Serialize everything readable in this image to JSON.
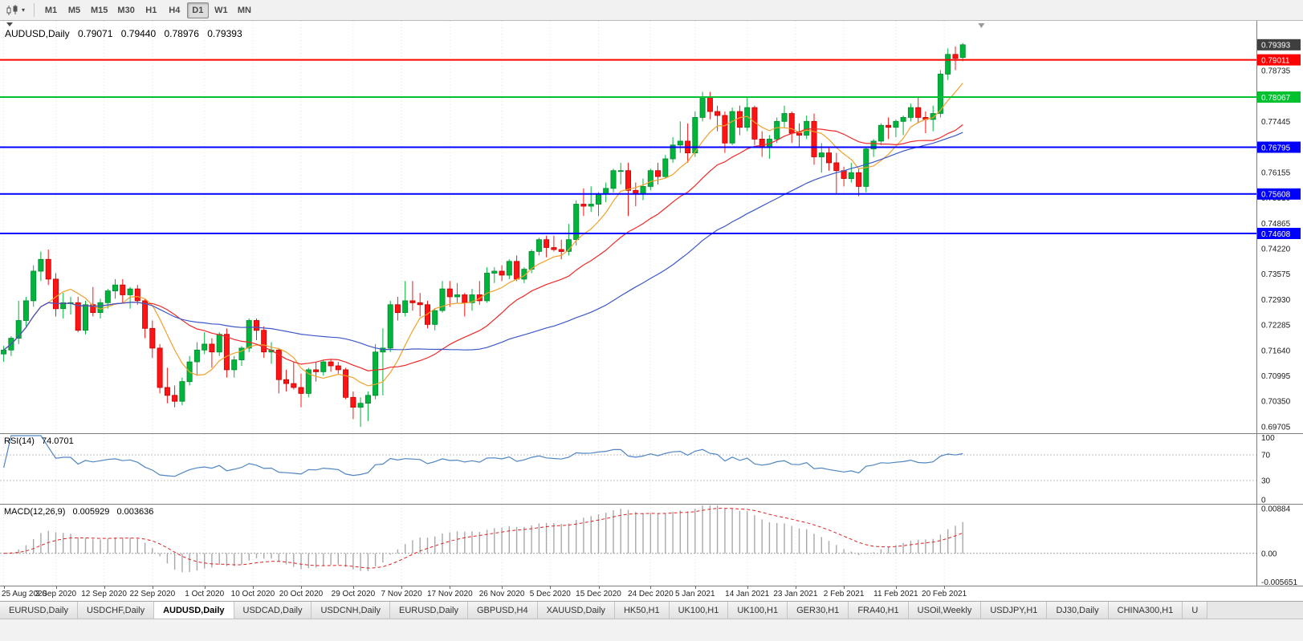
{
  "toolbar": {
    "timeframes": [
      "M1",
      "M5",
      "M15",
      "M30",
      "H1",
      "H4",
      "D1",
      "W1",
      "MN"
    ],
    "selected": "D1"
  },
  "header": {
    "symbol": "AUDUSD,Daily",
    "open": "0.79071",
    "high": "0.79440",
    "low": "0.78976",
    "close": "0.79393"
  },
  "rsi_panel": {
    "label": "RSI(14)",
    "value": "74.0701"
  },
  "macd_panel": {
    "label": "MACD(12,26,9)",
    "value_main": "0.005929",
    "value_signal": "0.003636"
  },
  "chart_data": {
    "type": "candlestick",
    "symbol": "AUDUSD",
    "timeframe": "Daily",
    "ohlc_current": {
      "open": 0.79071,
      "high": 0.7944,
      "low": 0.78976,
      "close": 0.79393
    },
    "visible_slots": 169,
    "shift_marker_slot": 131.5,
    "up_color": "#00b43c",
    "up_border": "#008a2e",
    "down_color": "#fe1414",
    "down_border": "#c40000",
    "price_axis": {
      "min": 0.6954,
      "max": 0.8,
      "labels": [
        "0.78735",
        "0.78090",
        "0.77445",
        "0.76800",
        "0.76155",
        "0.75510",
        "0.74865",
        "0.74220",
        "0.73575",
        "0.72930",
        "0.72285",
        "0.71640",
        "0.70995",
        "0.70350",
        "0.69705"
      ]
    },
    "current_price": {
      "value": 0.79393,
      "label": "0.79393",
      "tag_color": "#3f3f3f"
    },
    "horizontal_lines": [
      {
        "value": 0.79011,
        "label": "0.79011",
        "color": "#ff0000"
      },
      {
        "value": 0.78067,
        "label": "0.78067",
        "color": "#00c22e"
      },
      {
        "value": 0.76795,
        "label": "0.76795",
        "color": "#0000ff"
      },
      {
        "value": 0.75608,
        "label": "0.75608",
        "color": "#0000ff"
      },
      {
        "value": 0.74608,
        "label": "0.74608",
        "color": "#0000ff"
      }
    ],
    "moving_averages": [
      {
        "period": 7,
        "type": "sma",
        "color": "#f0a22d"
      },
      {
        "period": 20,
        "type": "sma",
        "color": "#ef2929"
      },
      {
        "period": 45,
        "type": "sma",
        "color": "#3c58c8"
      }
    ],
    "x_ticks": [
      {
        "i": 0,
        "label": "25 Aug 2020"
      },
      {
        "i": 7,
        "label": "3 Sep 2020"
      },
      {
        "i": 13.5,
        "label": "12 Sep 2020"
      },
      {
        "i": 20,
        "label": "22 Sep 2020"
      },
      {
        "i": 27,
        "label": "1 Oct 2020"
      },
      {
        "i": 33.5,
        "label": "10 Oct 2020"
      },
      {
        "i": 40,
        "label": "20 Oct 2020"
      },
      {
        "i": 47,
        "label": "29 Oct 2020"
      },
      {
        "i": 53.5,
        "label": "7 Nov 2020"
      },
      {
        "i": 60,
        "label": "17 Nov 2020"
      },
      {
        "i": 67,
        "label": "26 Nov 2020"
      },
      {
        "i": 73.5,
        "label": "5 Dec 2020"
      },
      {
        "i": 80,
        "label": "15 Dec 2020"
      },
      {
        "i": 87,
        "label": "24 Dec 2020"
      },
      {
        "i": 93,
        "label": "5 Jan 2021"
      },
      {
        "i": 100,
        "label": "14 Jan 2021"
      },
      {
        "i": 106.5,
        "label": "23 Jan 2021"
      },
      {
        "i": 113,
        "label": "2 Feb 2021"
      },
      {
        "i": 120,
        "label": "11 Feb 2021"
      },
      {
        "i": 126.5,
        "label": "20 Feb 2021"
      }
    ],
    "dates": [
      "2020-08-25",
      "2020-08-26",
      "2020-08-27",
      "2020-08-28",
      "2020-08-31",
      "2020-09-01",
      "2020-09-02",
      "2020-09-03",
      "2020-09-04",
      "2020-09-07",
      "2020-09-08",
      "2020-09-09",
      "2020-09-10",
      "2020-09-11",
      "2020-09-14",
      "2020-09-15",
      "2020-09-16",
      "2020-09-17",
      "2020-09-18",
      "2020-09-21",
      "2020-09-22",
      "2020-09-23",
      "2020-09-24",
      "2020-09-25",
      "2020-09-28",
      "2020-09-29",
      "2020-09-30",
      "2020-10-01",
      "2020-10-02",
      "2020-10-05",
      "2020-10-06",
      "2020-10-07",
      "2020-10-08",
      "2020-10-09",
      "2020-10-12",
      "2020-10-13",
      "2020-10-14",
      "2020-10-15",
      "2020-10-16",
      "2020-10-19",
      "2020-10-20",
      "2020-10-21",
      "2020-10-22",
      "2020-10-23",
      "2020-10-26",
      "2020-10-27",
      "2020-10-28",
      "2020-10-29",
      "2020-10-30",
      "2020-11-02",
      "2020-11-03",
      "2020-11-04",
      "2020-11-05",
      "2020-11-06",
      "2020-11-09",
      "2020-11-10",
      "2020-11-11",
      "2020-11-12",
      "2020-11-13",
      "2020-11-16",
      "2020-11-17",
      "2020-11-18",
      "2020-11-19",
      "2020-11-20",
      "2020-11-23",
      "2020-11-24",
      "2020-11-25",
      "2020-11-26",
      "2020-11-27",
      "2020-11-30",
      "2020-12-01",
      "2020-12-02",
      "2020-12-03",
      "2020-12-04",
      "2020-12-07",
      "2020-12-08",
      "2020-12-09",
      "2020-12-10",
      "2020-12-11",
      "2020-12-14",
      "2020-12-15",
      "2020-12-16",
      "2020-12-17",
      "2020-12-18",
      "2020-12-21",
      "2020-12-22",
      "2020-12-23",
      "2020-12-24",
      "2020-12-28",
      "2020-12-29",
      "2020-12-30",
      "2020-12-31",
      "2021-01-04",
      "2021-01-05",
      "2021-01-06",
      "2021-01-07",
      "2021-01-08",
      "2021-01-11",
      "2021-01-12",
      "2021-01-13",
      "2021-01-14",
      "2021-01-15",
      "2021-01-18",
      "2021-01-19",
      "2021-01-20",
      "2021-01-21",
      "2021-01-22",
      "2021-01-25",
      "2021-01-26",
      "2021-01-27",
      "2021-01-28",
      "2021-01-29",
      "2021-02-01",
      "2021-02-02",
      "2021-02-03",
      "2021-02-04",
      "2021-02-05",
      "2021-02-08",
      "2021-02-09",
      "2021-02-10",
      "2021-02-11",
      "2021-02-12",
      "2021-02-15",
      "2021-02-16",
      "2021-02-17",
      "2021-02-18",
      "2021-02-19",
      "2021-02-22",
      "2021-02-23",
      "2021-02-24"
    ],
    "candles_ohlc": [
      [
        0.7155,
        0.7175,
        0.7135,
        0.7165
      ],
      [
        0.7165,
        0.72,
        0.715,
        0.7195
      ],
      [
        0.7195,
        0.729,
        0.718,
        0.724
      ],
      [
        0.724,
        0.73,
        0.7225,
        0.729
      ],
      [
        0.729,
        0.738,
        0.7275,
        0.7365
      ],
      [
        0.7365,
        0.7415,
        0.734,
        0.7395
      ],
      [
        0.7395,
        0.742,
        0.733,
        0.7345
      ],
      [
        0.7345,
        0.736,
        0.725,
        0.727
      ],
      [
        0.727,
        0.731,
        0.7245,
        0.7285
      ],
      [
        0.7285,
        0.73,
        0.7255,
        0.7285
      ],
      [
        0.7285,
        0.73,
        0.721,
        0.7215
      ],
      [
        0.7215,
        0.729,
        0.7205,
        0.728
      ],
      [
        0.728,
        0.7325,
        0.725,
        0.726
      ],
      [
        0.726,
        0.7295,
        0.7245,
        0.7285
      ],
      [
        0.7285,
        0.732,
        0.727,
        0.7315
      ],
      [
        0.7315,
        0.7345,
        0.7295,
        0.733
      ],
      [
        0.733,
        0.7345,
        0.7285,
        0.7305
      ],
      [
        0.7305,
        0.7325,
        0.727,
        0.732
      ],
      [
        0.732,
        0.733,
        0.728,
        0.729
      ],
      [
        0.729,
        0.7295,
        0.7195,
        0.722
      ],
      [
        0.722,
        0.724,
        0.7145,
        0.717
      ],
      [
        0.717,
        0.718,
        0.7055,
        0.707
      ],
      [
        0.707,
        0.712,
        0.703,
        0.705
      ],
      [
        0.705,
        0.7075,
        0.702,
        0.7035
      ],
      [
        0.7035,
        0.7095,
        0.7025,
        0.7085
      ],
      [
        0.7085,
        0.715,
        0.7075,
        0.7135
      ],
      [
        0.7135,
        0.7185,
        0.71,
        0.7165
      ],
      [
        0.7165,
        0.721,
        0.7155,
        0.718
      ],
      [
        0.718,
        0.7195,
        0.712,
        0.716
      ],
      [
        0.716,
        0.721,
        0.715,
        0.7205
      ],
      [
        0.7205,
        0.722,
        0.7095,
        0.7115
      ],
      [
        0.7115,
        0.715,
        0.7095,
        0.714
      ],
      [
        0.714,
        0.7175,
        0.7125,
        0.717
      ],
      [
        0.717,
        0.7245,
        0.716,
        0.724
      ],
      [
        0.724,
        0.7245,
        0.719,
        0.7215
      ],
      [
        0.7215,
        0.7225,
        0.7145,
        0.716
      ],
      [
        0.716,
        0.7185,
        0.713,
        0.7165
      ],
      [
        0.7165,
        0.717,
        0.7055,
        0.709
      ],
      [
        0.709,
        0.7115,
        0.706,
        0.708
      ],
      [
        0.708,
        0.7135,
        0.7065,
        0.707
      ],
      [
        0.707,
        0.7105,
        0.702,
        0.7055
      ],
      [
        0.7055,
        0.712,
        0.7045,
        0.7115
      ],
      [
        0.7115,
        0.7135,
        0.7085,
        0.711
      ],
      [
        0.711,
        0.714,
        0.71,
        0.7135
      ],
      [
        0.7135,
        0.714,
        0.711,
        0.7125
      ],
      [
        0.7125,
        0.7135,
        0.7105,
        0.7115
      ],
      [
        0.7115,
        0.712,
        0.704,
        0.7045
      ],
      [
        0.7045,
        0.706,
        0.699,
        0.702
      ],
      [
        0.702,
        0.7045,
        0.697,
        0.703
      ],
      [
        0.703,
        0.706,
        0.6985,
        0.705
      ],
      [
        0.705,
        0.718,
        0.704,
        0.716
      ],
      [
        0.716,
        0.722,
        0.705,
        0.717
      ],
      [
        0.717,
        0.729,
        0.716,
        0.728
      ],
      [
        0.728,
        0.73,
        0.724,
        0.726
      ],
      [
        0.726,
        0.734,
        0.725,
        0.729
      ],
      [
        0.729,
        0.734,
        0.7265,
        0.7285
      ],
      [
        0.7285,
        0.731,
        0.725,
        0.728
      ],
      [
        0.728,
        0.729,
        0.722,
        0.723
      ],
      [
        0.723,
        0.727,
        0.7215,
        0.7265
      ],
      [
        0.7265,
        0.734,
        0.726,
        0.732
      ],
      [
        0.732,
        0.734,
        0.7275,
        0.73
      ],
      [
        0.73,
        0.7335,
        0.7285,
        0.7305
      ],
      [
        0.7305,
        0.731,
        0.725,
        0.7285
      ],
      [
        0.7285,
        0.732,
        0.7265,
        0.7305
      ],
      [
        0.7305,
        0.734,
        0.728,
        0.729
      ],
      [
        0.729,
        0.7375,
        0.7285,
        0.736
      ],
      [
        0.736,
        0.7375,
        0.7335,
        0.7365
      ],
      [
        0.7365,
        0.738,
        0.734,
        0.7355
      ],
      [
        0.7355,
        0.7395,
        0.7345,
        0.739
      ],
      [
        0.739,
        0.7405,
        0.734,
        0.7345
      ],
      [
        0.7345,
        0.7375,
        0.7335,
        0.737
      ],
      [
        0.737,
        0.742,
        0.736,
        0.7415
      ],
      [
        0.7415,
        0.745,
        0.7405,
        0.7445
      ],
      [
        0.7445,
        0.7455,
        0.74,
        0.7425
      ],
      [
        0.7425,
        0.7455,
        0.7415,
        0.742
      ],
      [
        0.742,
        0.7445,
        0.7395,
        0.7415
      ],
      [
        0.7415,
        0.7485,
        0.7405,
        0.7445
      ],
      [
        0.7445,
        0.7545,
        0.743,
        0.7535
      ],
      [
        0.7535,
        0.7575,
        0.7505,
        0.753
      ],
      [
        0.753,
        0.758,
        0.7515,
        0.7535
      ],
      [
        0.7535,
        0.7565,
        0.7505,
        0.756
      ],
      [
        0.756,
        0.759,
        0.754,
        0.7575
      ],
      [
        0.7575,
        0.7625,
        0.7565,
        0.762
      ],
      [
        0.762,
        0.764,
        0.7585,
        0.762
      ],
      [
        0.762,
        0.764,
        0.7505,
        0.757
      ],
      [
        0.757,
        0.759,
        0.753,
        0.756
      ],
      [
        0.756,
        0.76,
        0.7545,
        0.758
      ],
      [
        0.758,
        0.7625,
        0.757,
        0.762
      ],
      [
        0.762,
        0.764,
        0.7585,
        0.7605
      ],
      [
        0.7605,
        0.766,
        0.76,
        0.765
      ],
      [
        0.765,
        0.7705,
        0.764,
        0.7685
      ],
      [
        0.7685,
        0.7745,
        0.7665,
        0.7695
      ],
      [
        0.7695,
        0.774,
        0.764,
        0.7665
      ],
      [
        0.7665,
        0.777,
        0.7655,
        0.7755
      ],
      [
        0.7755,
        0.782,
        0.7745,
        0.7805
      ],
      [
        0.7805,
        0.782,
        0.775,
        0.777
      ],
      [
        0.777,
        0.7785,
        0.772,
        0.776
      ],
      [
        0.776,
        0.777,
        0.7665,
        0.769
      ],
      [
        0.769,
        0.778,
        0.7685,
        0.777
      ],
      [
        0.777,
        0.7785,
        0.771,
        0.773
      ],
      [
        0.773,
        0.7805,
        0.772,
        0.778
      ],
      [
        0.778,
        0.7785,
        0.7685,
        0.77
      ],
      [
        0.77,
        0.772,
        0.7655,
        0.768
      ],
      [
        0.768,
        0.771,
        0.765,
        0.77
      ],
      [
        0.77,
        0.7755,
        0.769,
        0.7745
      ],
      [
        0.7745,
        0.7785,
        0.773,
        0.7765
      ],
      [
        0.7765,
        0.777,
        0.769,
        0.7715
      ],
      [
        0.7715,
        0.774,
        0.768,
        0.771
      ],
      [
        0.771,
        0.776,
        0.77,
        0.7745
      ],
      [
        0.7745,
        0.7765,
        0.7635,
        0.7655
      ],
      [
        0.7655,
        0.769,
        0.7615,
        0.7665
      ],
      [
        0.7665,
        0.768,
        0.762,
        0.764
      ],
      [
        0.764,
        0.7665,
        0.756,
        0.762
      ],
      [
        0.762,
        0.763,
        0.758,
        0.76
      ],
      [
        0.76,
        0.764,
        0.759,
        0.7615
      ],
      [
        0.7615,
        0.7625,
        0.7555,
        0.758
      ],
      [
        0.758,
        0.768,
        0.7565,
        0.7675
      ],
      [
        0.7675,
        0.77,
        0.7655,
        0.7695
      ],
      [
        0.7695,
        0.774,
        0.7685,
        0.7735
      ],
      [
        0.7735,
        0.7755,
        0.77,
        0.773
      ],
      [
        0.773,
        0.775,
        0.7705,
        0.7745
      ],
      [
        0.7745,
        0.776,
        0.771,
        0.7755
      ],
      [
        0.7755,
        0.779,
        0.7745,
        0.778
      ],
      [
        0.778,
        0.7805,
        0.774,
        0.7755
      ],
      [
        0.7755,
        0.777,
        0.7715,
        0.775
      ],
      [
        0.775,
        0.7785,
        0.772,
        0.7765
      ],
      [
        0.7765,
        0.7875,
        0.7755,
        0.7865
      ],
      [
        0.7865,
        0.793,
        0.785,
        0.7915
      ],
      [
        0.7915,
        0.7935,
        0.7875,
        0.7905
      ],
      [
        0.79071,
        0.7944,
        0.78976,
        0.79393
      ]
    ],
    "indicators": [
      {
        "name": "RSI",
        "params": "14",
        "current_value": 74.0701,
        "line_color": "#4f86c4",
        "levels": [
          100,
          70,
          30,
          0
        ],
        "level_lines": [
          70,
          30
        ]
      },
      {
        "name": "MACD",
        "params": "12,26,9",
        "current_main": 0.005929,
        "current_signal": 0.003636,
        "signal_color": "#e02020",
        "histogram_color": "#a8a8a8",
        "axis_labels": [
          {
            "v": 0.00884,
            "label": "0.00884"
          },
          {
            "v": 0,
            "label": "0.00"
          },
          {
            "v": -0.005651,
            "label": "-0.005651"
          }
        ],
        "scale": {
          "max": 0.00975,
          "min": -0.00635
        }
      }
    ]
  },
  "tabs": {
    "items": [
      {
        "label": "EURUSD,Daily",
        "active": false
      },
      {
        "label": "USDCHF,Daily",
        "active": false
      },
      {
        "label": "AUDUSD,Daily",
        "active": true
      },
      {
        "label": "USDCAD,Daily",
        "active": false
      },
      {
        "label": "USDCNH,Daily",
        "active": false
      },
      {
        "label": "EURUSD,Daily",
        "active": false
      },
      {
        "label": "GBPUSD,H4",
        "active": false
      },
      {
        "label": "XAUUSD,Daily",
        "active": false
      },
      {
        "label": "HK50,H1",
        "active": false
      },
      {
        "label": "UK100,H1",
        "active": false
      },
      {
        "label": "UK100,H1",
        "active": false
      },
      {
        "label": "GER30,H1",
        "active": false
      },
      {
        "label": "FRA40,H1",
        "active": false
      },
      {
        "label": "USOil,Weekly",
        "active": false
      },
      {
        "label": "USDJPY,H1",
        "active": false
      },
      {
        "label": "DJ30,Daily",
        "active": false
      },
      {
        "label": "CHINA300,H1",
        "active": false
      },
      {
        "label": "U",
        "active": false
      }
    ]
  }
}
